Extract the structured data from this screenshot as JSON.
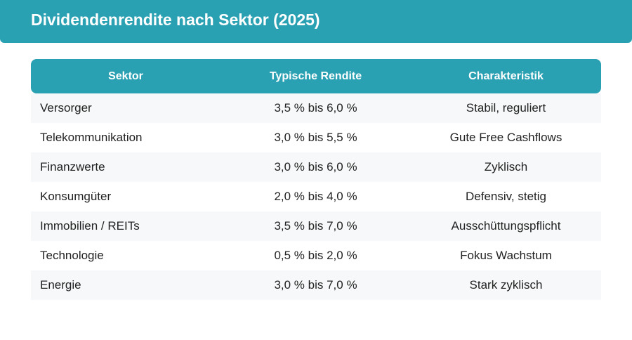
{
  "title": "Dividendenrendite nach Sektor (2025)",
  "table": {
    "headers": [
      "Sektor",
      "Typische Rendite",
      "Charakteristik"
    ],
    "rows": [
      [
        "Versorger",
        "3,5 % bis 6,0 %",
        "Stabil, reguliert"
      ],
      [
        "Telekommunikation",
        "3,0 % bis 5,5 %",
        "Gute Free Cashflows"
      ],
      [
        "Finanzwerte",
        "3,0 % bis 6,0 %",
        "Zyklisch"
      ],
      [
        "Konsumgüter",
        "2,0 % bis 4,0 %",
        "Defensiv, stetig"
      ],
      [
        "Immobilien / REITs",
        "3,5 % bis 7,0 %",
        "Ausschüttungspflicht"
      ],
      [
        "Technologie",
        "0,5 % bis 2,0 %",
        "Fokus Wachstum"
      ],
      [
        "Energie",
        "3,0 % bis 7,0 %",
        "Stark zyklisch"
      ]
    ]
  },
  "colors": {
    "accent": "#2aa1b3",
    "row_alt": "#f7f8f9",
    "text": "#222222"
  }
}
